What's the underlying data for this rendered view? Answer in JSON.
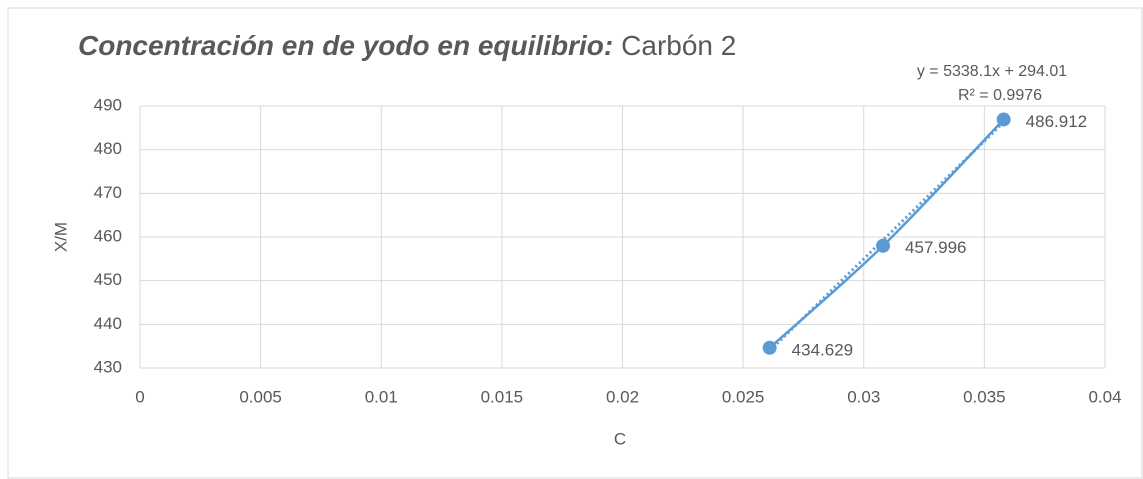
{
  "chart_data": {
    "type": "scatter",
    "title_emphasis": "Concentración en de yodo en equilibrio:",
    "title": "Carbón 2",
    "xlabel": "C",
    "ylabel": "X/M",
    "x": [
      0.0261,
      0.0308,
      0.0358
    ],
    "series": [
      {
        "name": "X/M",
        "color": "#5b9bd5",
        "values": [
          434.629,
          457.996,
          486.912
        ]
      }
    ],
    "trendline": {
      "equation": "y = 5338.1x + 294.01",
      "r_squared": "R² = 0.9976",
      "style": "dotted"
    },
    "xlim": [
      0,
      0.04
    ],
    "xticks": [
      0,
      0.005,
      0.01,
      0.015,
      0.02,
      0.025,
      0.03,
      0.035,
      0.04
    ],
    "ylim": [
      430,
      490
    ],
    "yticks": [
      430,
      440,
      450,
      460,
      470,
      480,
      490
    ],
    "grid": true,
    "smooth": true
  }
}
